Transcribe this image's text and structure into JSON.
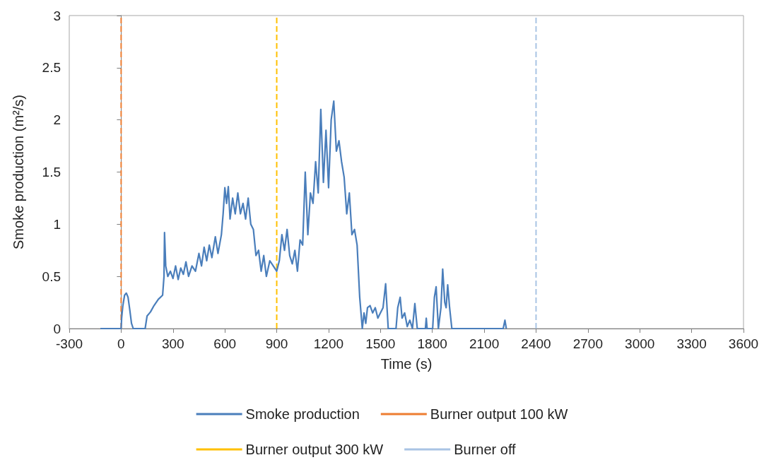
{
  "chart_data": {
    "type": "line",
    "xlabel": "Time (s)",
    "ylabel": "Smoke production (m²/s)",
    "xlim": [
      -300,
      3600
    ],
    "xticks": [
      -300,
      0,
      300,
      600,
      900,
      1200,
      1500,
      1800,
      2100,
      2400,
      2700,
      3000,
      3300,
      3600
    ],
    "ylim": [
      0,
      3
    ],
    "yticks": [
      0,
      0.5,
      1,
      1.5,
      2,
      2.5,
      3
    ],
    "grid": false,
    "legend": "bottom",
    "marker": "none",
    "line_style": "solid",
    "series": [
      {
        "name": "Smoke production",
        "color": "#4a7ebb",
        "x": [
          -120,
          0,
          3,
          10,
          20,
          30,
          40,
          50,
          60,
          70,
          139,
          150,
          170,
          190,
          215,
          240,
          248,
          251,
          258,
          270,
          285,
          300,
          315,
          330,
          345,
          360,
          375,
          390,
          410,
          430,
          450,
          465,
          480,
          495,
          510,
          525,
          545,
          560,
          580,
          590,
          600,
          610,
          620,
          630,
          645,
          660,
          675,
          690,
          705,
          720,
          735,
          750,
          765,
          780,
          795,
          810,
          825,
          840,
          860,
          880,
          900,
          915,
          930,
          945,
          960,
          975,
          990,
          1005,
          1020,
          1035,
          1050,
          1065,
          1080,
          1095,
          1110,
          1125,
          1140,
          1155,
          1170,
          1185,
          1200,
          1215,
          1230,
          1245,
          1260,
          1275,
          1290,
          1305,
          1320,
          1335,
          1350,
          1365,
          1380,
          1395,
          1405,
          1415,
          1425,
          1440,
          1455,
          1470,
          1485,
          1500,
          1515,
          1530,
          1545,
          1590,
          1600,
          1614,
          1625,
          1640,
          1655,
          1670,
          1685,
          1699,
          1713,
          1760,
          1765,
          1770,
          1802,
          1812,
          1822,
          1835,
          1850,
          1860,
          1872,
          1880,
          1889,
          1900,
          1913,
          2210,
          2220,
          2228
        ],
        "values": [
          0,
          0,
          0.1,
          0.22,
          0.32,
          0.34,
          0.3,
          0.18,
          0.05,
          0,
          0,
          0.12,
          0.16,
          0.22,
          0.28,
          0.32,
          0.5,
          0.92,
          0.6,
          0.5,
          0.55,
          0.48,
          0.6,
          0.47,
          0.58,
          0.52,
          0.64,
          0.5,
          0.6,
          0.55,
          0.72,
          0.6,
          0.78,
          0.65,
          0.8,
          0.68,
          0.88,
          0.72,
          0.9,
          1.1,
          1.35,
          1.2,
          1.36,
          1.05,
          1.25,
          1.1,
          1.3,
          1.1,
          1.2,
          1.05,
          1.25,
          1.0,
          0.95,
          0.7,
          0.75,
          0.55,
          0.7,
          0.5,
          0.65,
          0.6,
          0.55,
          0.65,
          0.9,
          0.75,
          0.95,
          0.7,
          0.62,
          0.75,
          0.55,
          0.85,
          0.8,
          1.5,
          0.9,
          1.3,
          1.2,
          1.6,
          1.3,
          2.1,
          1.4,
          1.9,
          1.35,
          2.0,
          2.18,
          1.7,
          1.8,
          1.6,
          1.45,
          1.1,
          1.3,
          0.9,
          0.95,
          0.8,
          0.3,
          0,
          0.15,
          0.05,
          0.2,
          0.22,
          0.15,
          0.2,
          0.1,
          0.15,
          0.2,
          0.43,
          0,
          0,
          0.2,
          0.3,
          0.1,
          0.15,
          0.02,
          0.08,
          0,
          0.24,
          0,
          0,
          0.1,
          0,
          0,
          0.3,
          0.4,
          0,
          0.2,
          0.57,
          0.25,
          0.2,
          0.42,
          0.2,
          0,
          0,
          0.08,
          0
        ]
      }
    ],
    "ref_lines": [
      {
        "axis": "x",
        "value": 0,
        "label": "Burner output 100 kW",
        "color": "#ed7d31",
        "line_style": "dashed"
      },
      {
        "axis": "x",
        "value": 900,
        "label": "Burner output 300 kW",
        "color": "#ffc000",
        "line_style": "dashed"
      },
      {
        "axis": "x",
        "value": 2400,
        "label": "Burner off",
        "color": "#a9c4e4",
        "line_style": "dashed"
      }
    ]
  }
}
